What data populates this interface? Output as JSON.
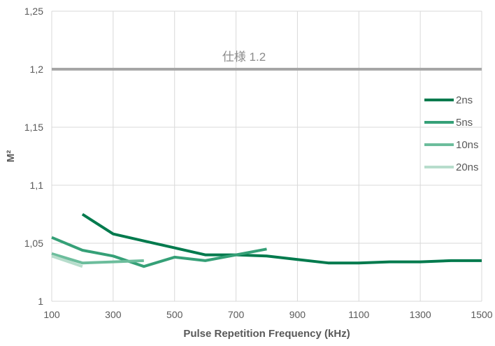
{
  "chart_data": {
    "type": "line",
    "title": "",
    "xlabel": "Pulse Repetition Frequency (kHz)",
    "ylabel": "M²",
    "xlim": [
      100,
      1500
    ],
    "ylim": [
      1,
      1.25
    ],
    "x_ticks": [
      100,
      300,
      500,
      700,
      900,
      1100,
      1300,
      1500
    ],
    "x_tick_labels": [
      "100",
      "300",
      "500",
      "700",
      "900",
      "1100",
      "1300",
      "1500"
    ],
    "y_ticks": [
      1,
      1.05,
      1.1,
      1.15,
      1.2,
      1.25
    ],
    "y_tick_labels": [
      "1",
      "1,05",
      "1,1",
      "1,15",
      "1,2",
      "1,25"
    ],
    "grid": true,
    "legend_position": "right",
    "reference_line": {
      "label": "仕様 1.2",
      "value": 1.2,
      "color": "#a6a6a6"
    },
    "series": [
      {
        "name": "2ns",
        "color": "#007a4d",
        "points": [
          [
            200,
            1.075
          ],
          [
            300,
            1.058
          ],
          [
            400,
            1.052
          ],
          [
            500,
            1.046
          ],
          [
            600,
            1.04
          ],
          [
            700,
            1.04
          ],
          [
            800,
            1.039
          ],
          [
            900,
            1.036
          ],
          [
            1000,
            1.033
          ],
          [
            1100,
            1.033
          ],
          [
            1200,
            1.034
          ],
          [
            1300,
            1.034
          ],
          [
            1400,
            1.035
          ],
          [
            1500,
            1.035
          ]
        ]
      },
      {
        "name": "5ns",
        "color": "#35a077",
        "points": [
          [
            100,
            1.055
          ],
          [
            200,
            1.044
          ],
          [
            300,
            1.039
          ],
          [
            400,
            1.03
          ],
          [
            500,
            1.038
          ],
          [
            600,
            1.035
          ],
          [
            700,
            1.04
          ],
          [
            800,
            1.045
          ]
        ]
      },
      {
        "name": "10ns",
        "color": "#6cbd9c",
        "points": [
          [
            100,
            1.041
          ],
          [
            200,
            1.033
          ],
          [
            300,
            1.034
          ],
          [
            400,
            1.035
          ]
        ]
      },
      {
        "name": "20ns",
        "color": "#b7ddcc",
        "points": [
          [
            100,
            1.039
          ],
          [
            200,
            1.03
          ]
        ]
      }
    ]
  }
}
